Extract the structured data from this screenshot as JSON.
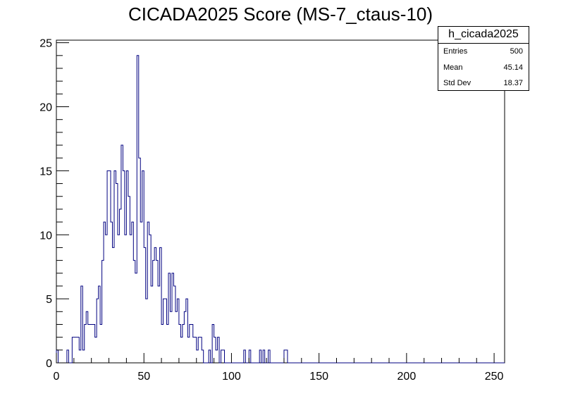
{
  "chart_data": {
    "type": "histogram",
    "title": "CICADA2025 Score (MS-7_ctaus-10)",
    "xlabel": "",
    "ylabel": "",
    "xlim": [
      0,
      256
    ],
    "ylim": [
      0,
      25.2
    ],
    "bin_width": 1,
    "x_ticks": [
      0,
      50,
      100,
      150,
      200,
      250
    ],
    "y_ticks": [
      0,
      5,
      10,
      15,
      20,
      25
    ],
    "line_color": "#000080",
    "grid": false,
    "stats": {
      "name": "h_cicada2025",
      "entries_label": "Entries",
      "entries": "500",
      "mean_label": "Mean",
      "mean": "45.14",
      "stddev_label": "Std Dev",
      "stddev": "18.37"
    },
    "counts": [
      1,
      0,
      0,
      0,
      0,
      0,
      1,
      0,
      0,
      2,
      2,
      2,
      2,
      1,
      6,
      1,
      3,
      4,
      3,
      3,
      3,
      3,
      2,
      5,
      6,
      3,
      8,
      11,
      10,
      15,
      15,
      11,
      9,
      15,
      14,
      10,
      12,
      17,
      15,
      10,
      15,
      13,
      10,
      11,
      8,
      7,
      24,
      16,
      11,
      15,
      9,
      5,
      11,
      10,
      6,
      8,
      9,
      8,
      6,
      9,
      3,
      5,
      5,
      3,
      7,
      4,
      7,
      6,
      4,
      5,
      3,
      2,
      3,
      4,
      5,
      2,
      3,
      3,
      2,
      2,
      1,
      2,
      2,
      1,
      0,
      0,
      0,
      1,
      0,
      3,
      2,
      1,
      2,
      0,
      1,
      1,
      0,
      0,
      0,
      0,
      0,
      0,
      0,
      0,
      0,
      0,
      0,
      1,
      0,
      0,
      1,
      0,
      0,
      0,
      0,
      0,
      1,
      0,
      1,
      0,
      0,
      1,
      0,
      0,
      0,
      0,
      0,
      0,
      0,
      0,
      1,
      1,
      0,
      0,
      0,
      0,
      0,
      0,
      0,
      0,
      0,
      0,
      0,
      0,
      0,
      0,
      0,
      0,
      0,
      0,
      0,
      0,
      0,
      0,
      0,
      0,
      0,
      0,
      0,
      0,
      0,
      0,
      0,
      0,
      0,
      0,
      0,
      0,
      0,
      0,
      0,
      0,
      0,
      0,
      0,
      0,
      0,
      0,
      0,
      0,
      0,
      0,
      0,
      0,
      0,
      0,
      0,
      0,
      0,
      0,
      0,
      0,
      0,
      0,
      0,
      0,
      0,
      0,
      0,
      0,
      0,
      0,
      0,
      0,
      0,
      0,
      0,
      0,
      0,
      0,
      0,
      0,
      0,
      0,
      0,
      0,
      0,
      0,
      0,
      0,
      0,
      0,
      0,
      0,
      0,
      0,
      0,
      0,
      0,
      0,
      0,
      0,
      0,
      0,
      0,
      0,
      0,
      0,
      0,
      0,
      0,
      0,
      0,
      0,
      0,
      0,
      0,
      0,
      0,
      0,
      0,
      0,
      0,
      0,
      0,
      0
    ]
  }
}
